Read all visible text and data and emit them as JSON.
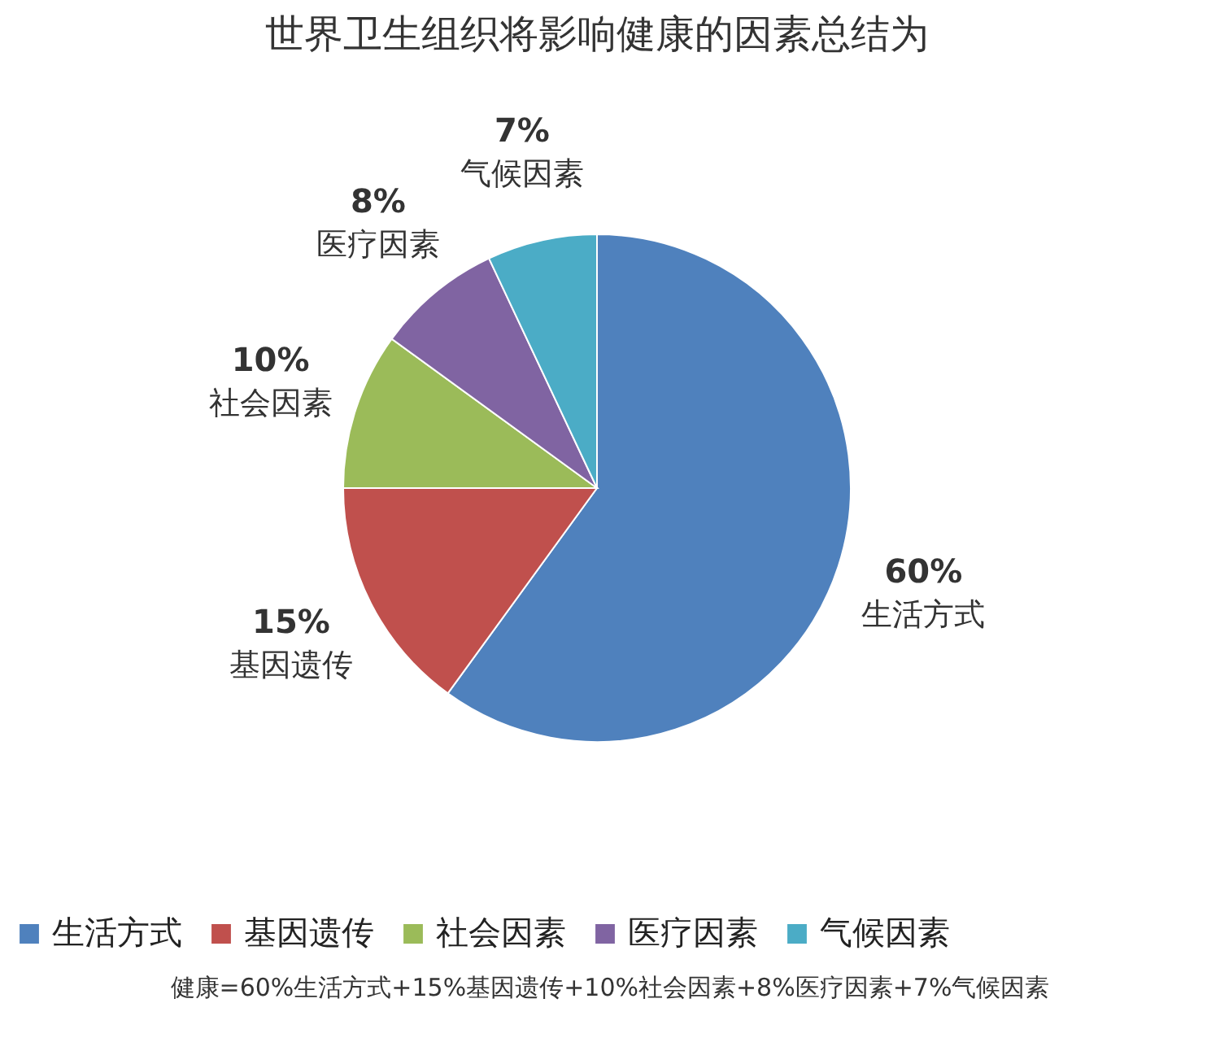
{
  "chart_data": {
    "type": "pie",
    "title": "世界卫生组织将影响健康的因素总结为",
    "categories": [
      "生活方式",
      "基因遗传",
      "社会因素",
      "医疗因素",
      "气候因素"
    ],
    "values": [
      60,
      15,
      10,
      8,
      7
    ],
    "value_labels": [
      "60%",
      "15%",
      "10%",
      "8%",
      "7%"
    ],
    "colors": [
      "#4f81bd",
      "#c0504d",
      "#9bbb59",
      "#8064a2",
      "#4bacc6"
    ],
    "legend": "bottom",
    "annotations": [
      "健康=60%生活方式+15%基因遗传+10%社会因素+8%医疗因素+7%气候因素"
    ]
  }
}
